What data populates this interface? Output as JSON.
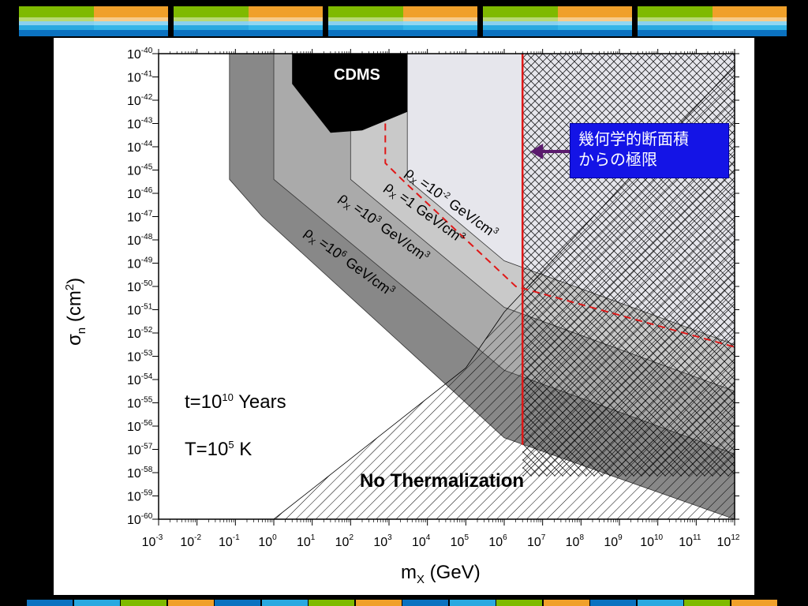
{
  "slide": {
    "callout_text_lines": [
      "幾何学的断面積",
      "からの極限"
    ],
    "colors": {
      "red": "#e01818",
      "blue": "#1414e6",
      "purple": "#5a1a6e"
    }
  },
  "chart_data": {
    "type": "area",
    "xlabel_main": "m",
    "xlabel_sub": "X",
    "xlabel_rest": " (GeV)",
    "ylabel_main": "σ",
    "ylabel_sub": "n",
    "ylabel_rest": " (cm",
    "ylabel_sup": "2",
    "ylabel_close": ")",
    "x_scale": "log",
    "y_scale": "log",
    "xlim": [
      0.001,
      1000000000000.0
    ],
    "ylim": [
      1e-60,
      1e-40
    ],
    "x_tick_exponents": [
      -3,
      -2,
      -1,
      0,
      1,
      2,
      3,
      4,
      5,
      6,
      7,
      8,
      9,
      10,
      11,
      12
    ],
    "y_tick_exponents": [
      -40,
      -41,
      -42,
      -43,
      -44,
      -45,
      -46,
      -47,
      -48,
      -49,
      -50,
      -51,
      -52,
      -53,
      -54,
      -55,
      -56,
      -57,
      -58,
      -59,
      -60
    ],
    "tick_base": "10",
    "annotations": {
      "cdms": "CDMS",
      "no_therm": "No Thermalization",
      "time_prefix": "t=10",
      "time_exp": "10",
      "time_suffix": " Years",
      "temp_prefix": "T=10",
      "temp_exp": "5",
      "temp_suffix": " K"
    },
    "density_labels": [
      {
        "rho": "ρ",
        "sub": "X",
        "eq": " =10",
        "exp": "-2",
        "unit": " GeV/cm",
        "unit_exp": "3"
      },
      {
        "rho": "ρ",
        "sub": "X",
        "eq": " =1 GeV/cm",
        "exp": "",
        "unit": "",
        "unit_exp": "3"
      },
      {
        "rho": "ρ",
        "sub": "X",
        "eq": " =10",
        "exp": "3",
        "unit": " GeV/cm",
        "unit_exp": "3"
      },
      {
        "rho": "ρ",
        "sub": "X",
        "eq": " =10",
        "exp": "6",
        "unit": " GeV/cm",
        "unit_exp": "3"
      }
    ],
    "regions": [
      {
        "name": "rho_1e6",
        "points": [
          [
            0.07,
            -40
          ],
          [
            0.07,
            -45.4
          ],
          [
            0.5,
            -47
          ],
          [
            1000000.0,
            -56.5
          ],
          [
            1000000000000.0,
            -60
          ],
          [
            1000000000000.0,
            -40
          ]
        ]
      },
      {
        "name": "rho_1e3",
        "points": [
          [
            1,
            -40
          ],
          [
            1,
            -45.4
          ],
          [
            1000000.0,
            -53.6
          ],
          [
            1000000000000.0,
            -57.2
          ],
          [
            1000000000000.0,
            -40
          ]
        ]
      },
      {
        "name": "rho_1",
        "points": [
          [
            100,
            -40
          ],
          [
            100,
            -45.4
          ],
          [
            1000000.0,
            -50.9
          ],
          [
            1000000000000.0,
            -54.5
          ],
          [
            1000000000000.0,
            -40
          ]
        ]
      },
      {
        "name": "rho_1e-2",
        "points": [
          [
            3000,
            -40
          ],
          [
            3000,
            -45.4
          ],
          [
            1000000.0,
            -48.9
          ],
          [
            1000000000000.0,
            -52.5
          ],
          [
            1000000000000.0,
            -40
          ]
        ]
      }
    ],
    "cdms_region": {
      "name": "CDMS",
      "points": [
        [
          3,
          -40
        ],
        [
          3000,
          -40
        ],
        [
          3000,
          -42.5
        ],
        [
          200,
          -43.3
        ],
        [
          30,
          -43.4
        ],
        [
          10,
          -42.4
        ],
        [
          3,
          -41.3
        ]
      ]
    },
    "red_dashed_limit": {
      "name": "red_dashed",
      "points": [
        [
          800,
          -43
        ],
        [
          800,
          -44.7
        ],
        [
          2500,
          -45.5
        ],
        [
          2000000.0,
          -50
        ],
        [
          1000000000000.0,
          -52.6
        ]
      ]
    },
    "geometric_limit": {
      "name": "geometric_cross_section",
      "x": 3000000.0,
      "y_range": [
        -40,
        -56.8
      ]
    },
    "no_therm_region": {
      "name": "no_thermalization",
      "points": [
        [
          1,
          -60
        ],
        [
          100000.0,
          -53.5
        ],
        [
          1000000.0,
          -51.1
        ],
        [
          1000000000000.0,
          -40.5
        ],
        [
          1000000000000.0,
          -60
        ]
      ]
    },
    "grid": false
  }
}
